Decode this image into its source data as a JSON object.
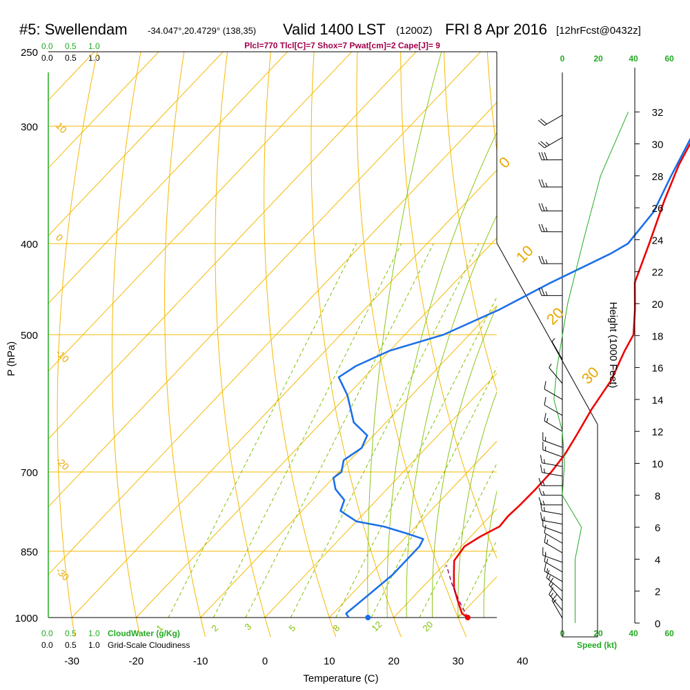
{
  "header": {
    "station": "#5: Swellendam",
    "coords": "-34.047°,20.4729° (138,35)",
    "valid": "Valid 1400 LST",
    "zulu": "(1200Z)",
    "date": "FRI 8 Apr 2016",
    "forecast": "[12hrFcst@0432z]",
    "indices": "Plcl=770 Tlcl[C]=7 Shox=7 Pwat[cm]=2 Cape[J]= 9"
  },
  "scales": {
    "top_green": [
      "0.0",
      "0.5",
      "1.0"
    ],
    "top_black": [
      "0.0",
      "0.5",
      "1.0"
    ],
    "bottom_green": [
      "0.0",
      "0.5",
      "1.0"
    ],
    "bottom_black": [
      "0.0",
      "0.5",
      "1.0"
    ],
    "cloudwater_label": "CloudWater (g/Kg)",
    "cloudiness_label": "Grid-Scale Cloudiness",
    "speed_top": [
      "0",
      "20",
      "40",
      "60"
    ],
    "speed_bottom": [
      "0",
      "20",
      "40",
      "60"
    ],
    "speed_label": "Speed (kt)"
  },
  "colors": {
    "temperature": "#ee0000",
    "dewpoint": "#1a6fe8",
    "isotherm": "#f5b800",
    "mixing_ratio": "#7fbf00",
    "cloudwater": "#22aa22"
  },
  "chart_data": {
    "type": "line",
    "subtype": "skew-T log-P sounding",
    "xlabel": "Temperature (C)",
    "ylabel": "P (hPa)",
    "y2label": "Height (1000 Feet)",
    "xlim": [
      -34,
      47
    ],
    "ylim": [
      1000,
      250
    ],
    "x_ticks": [
      -30,
      -20,
      -10,
      0,
      10,
      20,
      30,
      40
    ],
    "y_ticks": [
      250,
      300,
      400,
      500,
      700,
      850,
      1000
    ],
    "height_ticks": [
      0,
      2,
      4,
      6,
      8,
      10,
      12,
      14,
      16,
      18,
      20,
      22,
      24,
      26,
      28,
      30,
      32
    ],
    "isotherm_labels": [
      "10",
      "0",
      "-10",
      "-20",
      "-30"
    ],
    "adiabat_labels": [
      "0",
      "10",
      "20",
      "30"
    ],
    "mixing_ratio_labels": [
      "1",
      "2",
      "3",
      "5",
      "8",
      "12",
      "20"
    ],
    "series": [
      {
        "name": "Temperature",
        "points": [
          [
            1000,
            31.5
          ],
          [
            990,
            30
          ],
          [
            960,
            27.5
          ],
          [
            930,
            25
          ],
          [
            900,
            23
          ],
          [
            870,
            21
          ],
          [
            840,
            20.5
          ],
          [
            820,
            21.5
          ],
          [
            800,
            23
          ],
          [
            780,
            22.8
          ],
          [
            760,
            23
          ],
          [
            730,
            23.1
          ],
          [
            700,
            23
          ],
          [
            670,
            22.5
          ],
          [
            640,
            21.5
          ],
          [
            600,
            20
          ],
          [
            560,
            18.8
          ],
          [
            520,
            16.5
          ],
          [
            500,
            15.5
          ],
          [
            470,
            12
          ],
          [
            440,
            8
          ],
          [
            400,
            4.5
          ],
          [
            360,
            0.5
          ],
          [
            330,
            -2.5
          ],
          [
            300,
            -5
          ],
          [
            270,
            -8
          ],
          [
            258,
            -9
          ]
        ]
      },
      {
        "name": "Dewpoint",
        "points": [
          [
            1000,
            13
          ],
          [
            990,
            12
          ],
          [
            960,
            12.5
          ],
          [
            930,
            13
          ],
          [
            900,
            13.5
          ],
          [
            870,
            13.5
          ],
          [
            840,
            13.5
          ],
          [
            825,
            13
          ],
          [
            815,
            10
          ],
          [
            800,
            5
          ],
          [
            790,
            0
          ],
          [
            770,
            -4
          ],
          [
            750,
            -5
          ],
          [
            730,
            -8
          ],
          [
            710,
            -10
          ],
          [
            700,
            -9.6
          ],
          [
            680,
            -11
          ],
          [
            660,
            -10
          ],
          [
            640,
            -11
          ],
          [
            620,
            -15
          ],
          [
            580,
            -20
          ],
          [
            555,
            -24
          ],
          [
            540,
            -23
          ],
          [
            520,
            -20
          ],
          [
            500,
            -14
          ],
          [
            470,
            -9
          ],
          [
            440,
            -5
          ],
          [
            410,
            0
          ],
          [
            400,
            1.2
          ],
          [
            370,
            0.5
          ],
          [
            340,
            -2
          ],
          [
            310,
            -4.5
          ],
          [
            280,
            -7
          ],
          [
            258,
            -9
          ]
        ]
      },
      {
        "name": "Parcel",
        "points": [
          [
            1000,
            31.5
          ],
          [
            960,
            27.7
          ],
          [
            920,
            24
          ],
          [
            880,
            20.5
          ]
        ]
      }
    ],
    "surface_marker_temp": 16,
    "cloudwater_trace": [
      [
        0,
        0.62
      ],
      [
        2,
        0.62
      ],
      [
        4,
        0.62
      ],
      [
        6,
        0.68
      ],
      [
        8,
        0.5
      ],
      [
        10,
        0.52
      ],
      [
        12,
        0.5
      ],
      [
        14,
        0.42
      ],
      [
        16,
        0.45
      ],
      [
        20,
        0.55
      ],
      [
        24,
        0.7
      ],
      [
        28,
        0.86
      ],
      [
        32,
        1.12
      ]
    ],
    "wind_barbs": [
      {
        "h": 0.3,
        "dir": 330,
        "spd": 15
      },
      {
        "h": 0.8,
        "dir": 320,
        "spd": 15
      },
      {
        "h": 1.4,
        "dir": 320,
        "spd": 15
      },
      {
        "h": 2.0,
        "dir": 310,
        "spd": 15
      },
      {
        "h": 2.6,
        "dir": 300,
        "spd": 15
      },
      {
        "h": 3.2,
        "dir": 300,
        "spd": 15
      },
      {
        "h": 3.8,
        "dir": 290,
        "spd": 15
      },
      {
        "h": 4.4,
        "dir": 300,
        "spd": 15
      },
      {
        "h": 5.0,
        "dir": 300,
        "spd": 10
      },
      {
        "h": 5.6,
        "dir": 290,
        "spd": 10
      },
      {
        "h": 6.2,
        "dir": 280,
        "spd": 15
      },
      {
        "h": 6.8,
        "dir": 280,
        "spd": 15
      },
      {
        "h": 7.4,
        "dir": 270,
        "spd": 15
      },
      {
        "h": 8.0,
        "dir": 270,
        "spd": 15
      },
      {
        "h": 8.6,
        "dir": 270,
        "spd": 15
      },
      {
        "h": 9.2,
        "dir": 280,
        "spd": 15
      },
      {
        "h": 9.8,
        "dir": 280,
        "spd": 15
      },
      {
        "h": 10.4,
        "dir": 290,
        "spd": 15
      },
      {
        "h": 11.0,
        "dir": 290,
        "spd": 15
      },
      {
        "h": 12.0,
        "dir": 300,
        "spd": 15
      },
      {
        "h": 13.0,
        "dir": 300,
        "spd": 10
      },
      {
        "h": 14.0,
        "dir": 300,
        "spd": 10
      },
      {
        "h": 15.0,
        "dir": 320,
        "spd": 5
      },
      {
        "h": 16.5,
        "dir": 330,
        "spd": 5
      },
      {
        "h": 20.5,
        "dir": 270,
        "spd": 25
      },
      {
        "h": 22.5,
        "dir": 270,
        "spd": 25
      },
      {
        "h": 24.5,
        "dir": 270,
        "spd": 25
      },
      {
        "h": 25.8,
        "dir": 270,
        "spd": 25
      },
      {
        "h": 27.3,
        "dir": 270,
        "spd": 25
      },
      {
        "h": 29.0,
        "dir": 270,
        "spd": 30
      },
      {
        "h": 30.4,
        "dir": 240,
        "spd": 25
      },
      {
        "h": 31.8,
        "dir": 240,
        "spd": 20
      }
    ]
  }
}
